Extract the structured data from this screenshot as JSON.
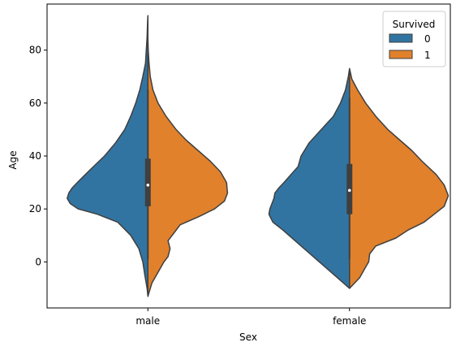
{
  "chart_data": {
    "type": "violin",
    "split": true,
    "xlabel": "Sex",
    "ylabel": "Age",
    "categories": [
      "male",
      "female"
    ],
    "ylim": [
      -17.4,
      97.4
    ],
    "yticks": [
      0,
      20,
      40,
      60,
      80
    ],
    "legend": {
      "title": "Survived",
      "position": "top-right",
      "entries": [
        {
          "label": "0",
          "color": "#3274a1"
        },
        {
          "label": "1",
          "color": "#e1812c"
        }
      ]
    },
    "series": [
      {
        "name": "0",
        "side": "left",
        "color": "#3274a1",
        "profiles": [
          {
            "category": "male",
            "ages": [
              -13,
              -10,
              -5,
              0,
              5,
              10,
              15,
              18,
              20,
              22,
              24,
              26,
              28,
              30,
              33,
              36,
              40,
              45,
              50,
              55,
              60,
              65,
              70,
              75,
              80,
              85,
              90,
              93
            ],
            "widths": [
              0.0,
              0.004,
              0.015,
              0.025,
              0.045,
              0.085,
              0.15,
              0.25,
              0.345,
              0.385,
              0.4,
              0.392,
              0.375,
              0.35,
              0.31,
              0.27,
              0.215,
              0.16,
              0.115,
              0.085,
              0.06,
              0.04,
              0.025,
              0.012,
              0.008,
              0.004,
              0.002,
              0.0
            ]
          },
          {
            "category": "female",
            "ages": [
              -10,
              -7,
              -4,
              0,
              4,
              8,
              12,
              15,
              18,
              20,
              22,
              24,
              26,
              28,
              30,
              33,
              36,
              40,
              45,
              50,
              55,
              60,
              65,
              70,
              73
            ],
            "widths": [
              0.0,
              0.045,
              0.09,
              0.15,
              0.21,
              0.27,
              0.33,
              0.38,
              0.4,
              0.395,
              0.385,
              0.375,
              0.37,
              0.35,
              0.325,
              0.29,
              0.255,
              0.24,
              0.2,
              0.14,
              0.08,
              0.045,
              0.02,
              0.006,
              0.0
            ]
          }
        ]
      },
      {
        "name": "1",
        "side": "right",
        "color": "#e1812c",
        "profiles": [
          {
            "category": "male",
            "ages": [
              -13,
              -8,
              -4,
              0,
              2,
              5,
              8,
              11,
              14,
              17,
              20,
              23,
              26,
              30,
              34,
              38,
              42,
              46,
              50,
              55,
              60,
              65,
              70,
              75,
              80,
              84
            ],
            "widths": [
              0.0,
              0.02,
              0.05,
              0.08,
              0.1,
              0.11,
              0.1,
              0.13,
              0.16,
              0.25,
              0.33,
              0.38,
              0.395,
              0.39,
              0.36,
              0.31,
              0.25,
              0.19,
              0.14,
              0.09,
              0.05,
              0.025,
              0.012,
              0.006,
              0.002,
              0.0
            ]
          },
          {
            "category": "female",
            "ages": [
              -10,
              -6,
              -2,
              0,
              3,
              6,
              9,
              12,
              15,
              18,
              21,
              25,
              29,
              33,
              38,
              42,
              46,
              50,
              55,
              60,
              65,
              69,
              73
            ],
            "widths": [
              0.0,
              0.05,
              0.08,
              0.095,
              0.1,
              0.13,
              0.23,
              0.29,
              0.37,
              0.42,
              0.47,
              0.49,
              0.47,
              0.43,
              0.36,
              0.31,
              0.25,
              0.19,
              0.13,
              0.08,
              0.04,
              0.012,
              0.0
            ]
          }
        ]
      }
    ],
    "inner_box": [
      {
        "category": "male",
        "q1": 21,
        "median": 29,
        "q3": 39,
        "whisker_low": 1,
        "whisker_high": 65
      },
      {
        "category": "female",
        "q1": 18,
        "median": 27,
        "q3": 37,
        "whisker_low": 1,
        "whisker_high": 62
      }
    ]
  }
}
